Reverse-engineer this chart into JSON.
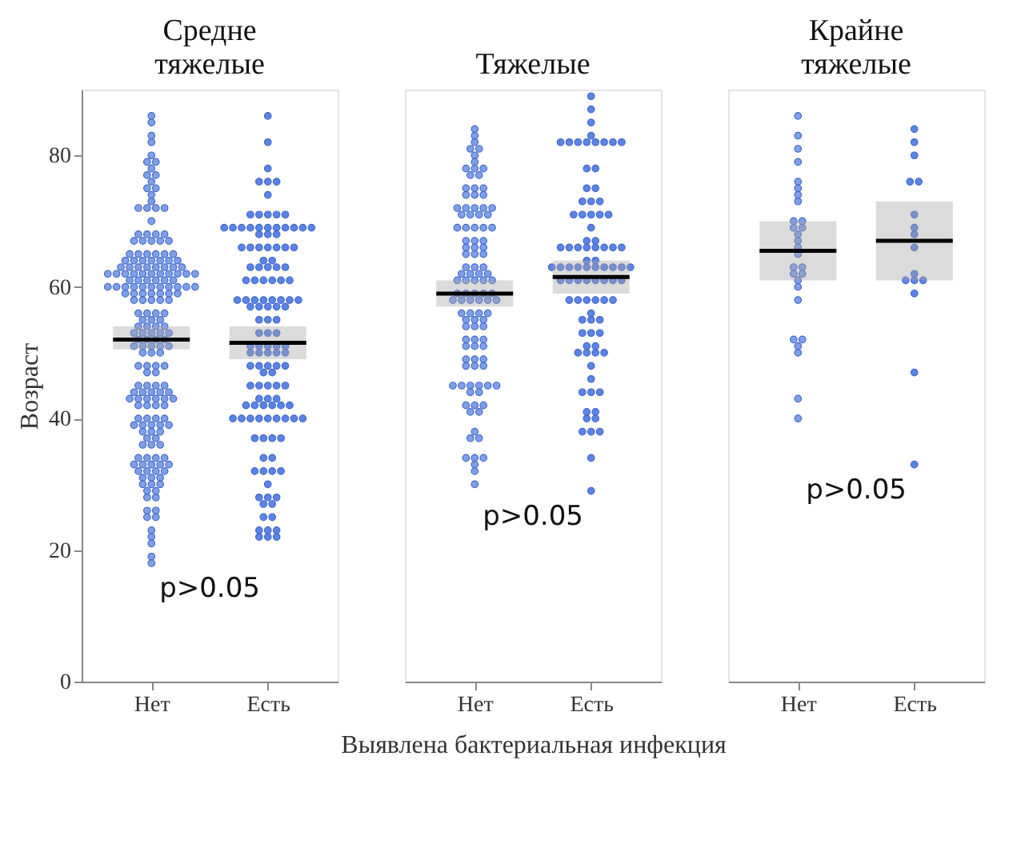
{
  "chart_data": [
    {
      "type": "scatter",
      "title": "Средне тяжелые",
      "ylabel": "Возраст",
      "categories": [
        "Нет",
        "Есть"
      ],
      "ylim": [
        0,
        90
      ],
      "yticks": [
        0,
        20,
        40,
        60,
        80
      ],
      "annotations": [
        "p>0.05"
      ],
      "series": [
        {
          "type": "scatter",
          "color": "#7fa0e8",
          "marker": "circle",
          "x": [
            "Нет",
            "Нет",
            "Нет",
            "Нет",
            "Нет",
            "Нет",
            "Нет",
            "Нет",
            "Нет",
            "Нет",
            "Нет",
            "Нет",
            "Нет",
            "Нет",
            "Нет",
            "Нет",
            "Нет",
            "Нет",
            "Нет",
            "Нет",
            "Нет",
            "Нет",
            "Нет",
            "Нет",
            "Нет",
            "Нет",
            "Нет",
            "Нет",
            "Нет",
            "Нет",
            "Нет",
            "Нет",
            "Нет",
            "Нет",
            "Нет",
            "Нет",
            "Нет",
            "Нет",
            "Нет",
            "Нет",
            "Нет",
            "Нет",
            "Нет",
            "Нет",
            "Нет",
            "Нет",
            "Нет",
            "Нет",
            "Нет",
            "Нет",
            "Нет",
            "Нет",
            "Нет",
            "Нет",
            "Нет",
            "Нет",
            "Нет",
            "Нет",
            "Нет",
            "Нет",
            "Нет",
            "Нет",
            "Нет",
            "Нет",
            "Нет",
            "Нет",
            "Нет",
            "Нет",
            "Нет",
            "Нет",
            "Нет",
            "Нет",
            "Нет",
            "Нет",
            "Нет",
            "Нет",
            "Нет",
            "Нет",
            "Нет",
            "Нет",
            "Нет",
            "Нет",
            "Нет",
            "Нет",
            "Нет",
            "Нет",
            "Нет",
            "Нет",
            "Нет",
            "Нет",
            "Нет",
            "Нет",
            "Нет",
            "Нет",
            "Нет",
            "Нет",
            "Нет",
            "Нет",
            "Нет",
            "Нет",
            "Нет",
            "Нет",
            "Нет",
            "Нет",
            "Нет",
            "Нет",
            "Нет",
            "Нет",
            "Нет",
            "Нет",
            "Нет",
            "Нет",
            "Нет",
            "Нет",
            "Нет",
            "Нет",
            "Нет",
            "Нет",
            "Нет",
            "Нет",
            "Нет",
            "Нет",
            "Нет",
            "Нет",
            "Нет",
            "Нет",
            "Нет",
            "Нет",
            "Нет",
            "Нет",
            "Нет",
            "Нет",
            "Нет",
            "Нет",
            "Нет",
            "Нет",
            "Нет",
            "Нет",
            "Нет",
            "Нет",
            "Нет",
            "Нет",
            "Нет",
            "Нет",
            "Нет",
            "Нет",
            "Нет",
            "Нет",
            "Нет",
            "Нет",
            "Нет",
            "Нет",
            "Нет",
            "Нет",
            "Нет",
            "Нет",
            "Нет",
            "Нет",
            "Нет",
            "Нет",
            "Нет",
            "Нет",
            "Нет",
            "Нет",
            "Нет",
            "Нет",
            "Нет",
            "Нет",
            "Нет",
            "Нет",
            "Нет",
            "Нет",
            "Нет",
            "Нет",
            "Нет",
            "Нет",
            "Нет",
            "Нет",
            "Нет",
            "Нет",
            "Нет",
            "Нет",
            "Нет",
            "Нет",
            "Нет",
            "Нет",
            "Нет",
            "Нет",
            "Нет",
            "Нет",
            "Нет",
            "Нет"
          ],
          "values": [
            86,
            85,
            83,
            82,
            80,
            79,
            79,
            78,
            77,
            77,
            76,
            75,
            75,
            74,
            73,
            72,
            72,
            72,
            72,
            70,
            68,
            68,
            68,
            68,
            67,
            67,
            67,
            67,
            67,
            65,
            65,
            65,
            65,
            65,
            65,
            64,
            64,
            64,
            64,
            64,
            64,
            64,
            63,
            63,
            63,
            63,
            63,
            63,
            63,
            63,
            62,
            62,
            62,
            62,
            62,
            62,
            62,
            62,
            62,
            62,
            62,
            61,
            61,
            61,
            61,
            61,
            61,
            60,
            60,
            60,
            60,
            60,
            60,
            60,
            60,
            60,
            60,
            60,
            59,
            59,
            59,
            59,
            59,
            59,
            59,
            58,
            58,
            58,
            58,
            58,
            56,
            56,
            56,
            56,
            55,
            55,
            55,
            54,
            54,
            54,
            54,
            53,
            53,
            53,
            53,
            53,
            52,
            52,
            52,
            52,
            51,
            51,
            51,
            51,
            51,
            50,
            50,
            50,
            48,
            48,
            48,
            48,
            47,
            47,
            45,
            45,
            45,
            45,
            44,
            44,
            44,
            44,
            44,
            43,
            43,
            43,
            43,
            43,
            43,
            42,
            42,
            42,
            42,
            40,
            40,
            40,
            40,
            39,
            39,
            39,
            39,
            39,
            38,
            38,
            38,
            37,
            37,
            36,
            36,
            36,
            34,
            34,
            34,
            34,
            33,
            33,
            33,
            33,
            33,
            32,
            32,
            32,
            32,
            31,
            31,
            31,
            30,
            30,
            30,
            29,
            29,
            28,
            28,
            26,
            26,
            25,
            25,
            23,
            22,
            21,
            19,
            18
          ]
        },
        {
          "type": "scatter",
          "color": "#5b84e6",
          "marker": "circle",
          "x": [
            "Есть",
            "Есть",
            "Есть",
            "Есть",
            "Есть",
            "Есть",
            "Есть",
            "Есть",
            "Есть",
            "Есть",
            "Есть",
            "Есть",
            "Есть",
            "Есть",
            "Есть",
            "Есть",
            "Есть",
            "Есть",
            "Есть",
            "Есть",
            "Есть",
            "Есть",
            "Есть",
            "Есть",
            "Есть",
            "Есть",
            "Есть",
            "Есть",
            "Есть",
            "Есть",
            "Есть",
            "Есть",
            "Есть",
            "Есть",
            "Есть",
            "Есть",
            "Есть",
            "Есть",
            "Есть",
            "Есть",
            "Есть",
            "Есть",
            "Есть",
            "Есть",
            "Есть",
            "Есть",
            "Есть",
            "Есть",
            "Есть",
            "Есть",
            "Есть",
            "Есть",
            "Есть",
            "Есть",
            "Есть",
            "Есть",
            "Есть",
            "Есть",
            "Есть",
            "Есть",
            "Есть",
            "Есть",
            "Есть",
            "Есть",
            "Есть",
            "Есть",
            "Есть",
            "Есть",
            "Есть",
            "Есть",
            "Есть",
            "Есть",
            "Есть",
            "Есть",
            "Есть",
            "Есть",
            "Есть",
            "Есть",
            "Есть",
            "Есть",
            "Есть",
            "Есть",
            "Есть",
            "Есть",
            "Есть",
            "Есть",
            "Есть",
            "Есть",
            "Есть",
            "Есть",
            "Есть",
            "Есть",
            "Есть",
            "Есть",
            "Есть",
            "Есть",
            "Есть",
            "Есть",
            "Есть",
            "Есть",
            "Есть",
            "Есть",
            "Есть",
            "Есть",
            "Есть",
            "Есть",
            "Есть",
            "Есть",
            "Есть",
            "Есть",
            "Есть",
            "Есть",
            "Есть",
            "Есть",
            "Есть",
            "Есть",
            "Есть",
            "Есть",
            "Есть",
            "Есть",
            "Есть",
            "Есть",
            "Есть",
            "Есть",
            "Есть",
            "Есть",
            "Есть",
            "Есть",
            "Есть"
          ],
          "values": [
            86,
            82,
            78,
            76,
            76,
            76,
            74,
            71,
            71,
            71,
            71,
            71,
            69,
            69,
            69,
            69,
            69,
            69,
            69,
            69,
            69,
            69,
            69,
            68,
            68,
            68,
            66,
            66,
            66,
            66,
            66,
            66,
            66,
            64,
            64,
            63,
            63,
            63,
            63,
            63,
            61,
            61,
            61,
            61,
            61,
            61,
            58,
            58,
            58,
            58,
            58,
            58,
            58,
            58,
            57,
            57,
            57,
            57,
            57,
            55,
            55,
            55,
            53,
            53,
            53,
            51,
            51,
            51,
            51,
            51,
            50,
            50,
            50,
            50,
            50,
            48,
            48,
            48,
            48,
            48,
            47,
            47,
            45,
            45,
            45,
            45,
            45,
            43,
            43,
            43,
            42,
            42,
            42,
            42,
            42,
            42,
            40,
            40,
            40,
            40,
            40,
            40,
            40,
            40,
            40,
            37,
            37,
            37,
            37,
            34,
            34,
            32,
            32,
            32,
            32,
            30,
            28,
            28,
            28,
            27,
            27,
            25,
            25,
            23,
            23,
            23,
            22,
            22,
            22
          ]
        },
        {
          "type": "box",
          "color": "#a6a6a6",
          "boxes": [
            {
              "low": 50.5,
              "q1": 50.5,
              "median": 52,
              "q3": 54,
              "high": 54
            },
            {
              "low": 49,
              "q1": 49,
              "median": 51.5,
              "q3": 54,
              "high": 54
            }
          ]
        }
      ]
    },
    {
      "type": "scatter",
      "title": "Тяжелые",
      "xlabel": "Выявлена бактериальная инфекция",
      "categories": [
        "Нет",
        "Есть"
      ],
      "ylim": [
        0,
        90
      ],
      "yticks": [
        0,
        20,
        40,
        60,
        80
      ],
      "tick_labels": "x",
      "annotations": [
        "p>0.05"
      ],
      "series": [
        {
          "type": "scatter",
          "color": "#7fa0e8",
          "marker": "circle",
          "x": [
            "Нет",
            "Нет",
            "Нет",
            "Нет",
            "Нет",
            "Нет",
            "Нет",
            "Нет",
            "Нет",
            "Нет",
            "Нет",
            "Нет",
            "Нет",
            "Нет",
            "Нет",
            "Нет",
            "Нет",
            "Нет",
            "Нет",
            "Нет",
            "Нет",
            "Нет",
            "Нет",
            "Нет",
            "Нет",
            "Нет",
            "Нет",
            "Нет",
            "Нет",
            "Нет",
            "Нет",
            "Нет",
            "Нет",
            "Нет",
            "Нет",
            "Нет",
            "Нет",
            "Нет",
            "Нет",
            "Нет",
            "Нет",
            "Нет",
            "Нет",
            "Нет",
            "Нет",
            "Нет",
            "Нет",
            "Нет",
            "Нет",
            "Нет",
            "Нет",
            "Нет",
            "Нет",
            "Нет",
            "Нет",
            "Нет",
            "Нет",
            "Нет",
            "Нет",
            "Нет",
            "Нет",
            "Нет",
            "Нет",
            "Нет",
            "Нет",
            "Нет",
            "Нет",
            "Нет",
            "Нет",
            "Нет",
            "Нет",
            "Нет",
            "Нет",
            "Нет",
            "Нет",
            "Нет",
            "Нет",
            "Нет",
            "Нет",
            "Нет",
            "Нет",
            "Нет",
            "Нет",
            "Нет",
            "Нет",
            "Нет",
            "Нет",
            "Нет",
            "Нет",
            "Нет",
            "Нет",
            "Нет",
            "Нет",
            "Нет",
            "Нет",
            "Нет",
            "Нет",
            "Нет",
            "Нет",
            "Нет",
            "Нет",
            "Нет",
            "Нет",
            "Нет",
            "Нет",
            "Нет",
            "Нет",
            "Нет"
          ],
          "values": [
            84,
            83,
            82,
            81,
            81,
            80,
            79,
            78,
            78,
            78,
            77,
            77,
            75,
            75,
            75,
            74,
            74,
            74,
            72,
            72,
            72,
            72,
            72,
            71,
            71,
            71,
            71,
            69,
            69,
            69,
            69,
            69,
            67,
            67,
            67,
            66,
            66,
            66,
            65,
            65,
            65,
            63,
            63,
            63,
            62,
            62,
            62,
            62,
            61,
            61,
            61,
            61,
            61,
            59,
            59,
            59,
            59,
            59,
            58,
            58,
            58,
            58,
            58,
            58,
            56,
            56,
            56,
            56,
            55,
            55,
            55,
            54,
            54,
            54,
            52,
            52,
            52,
            51,
            51,
            51,
            49,
            49,
            49,
            48,
            48,
            48,
            45,
            45,
            45,
            45,
            45,
            45,
            44,
            44,
            42,
            42,
            42,
            41,
            41,
            38,
            37,
            37,
            34,
            34,
            34,
            33,
            32,
            30
          ]
        },
        {
          "type": "scatter",
          "color": "#5b84e6",
          "marker": "circle",
          "x": [
            "Есть",
            "Есть",
            "Есть",
            "Есть",
            "Есть",
            "Есть",
            "Есть",
            "Есть",
            "Есть",
            "Есть",
            "Есть",
            "Есть",
            "Есть",
            "Есть",
            "Есть",
            "Есть",
            "Есть",
            "Есть",
            "Есть",
            "Есть",
            "Есть",
            "Есть",
            "Есть",
            "Есть",
            "Есть",
            "Есть",
            "Есть",
            "Есть",
            "Есть",
            "Есть",
            "Есть",
            "Есть",
            "Есть",
            "Есть",
            "Есть",
            "Есть",
            "Есть",
            "Есть",
            "Есть",
            "Есть",
            "Есть",
            "Есть",
            "Есть",
            "Есть",
            "Есть",
            "Есть",
            "Есть",
            "Есть",
            "Есть",
            "Есть",
            "Есть",
            "Есть",
            "Есть",
            "Есть",
            "Есть",
            "Есть",
            "Есть",
            "Есть",
            "Есть",
            "Есть",
            "Есть",
            "Есть",
            "Есть",
            "Есть",
            "Есть",
            "Есть",
            "Есть",
            "Есть",
            "Есть",
            "Есть",
            "Есть",
            "Есть",
            "Есть",
            "Есть",
            "Есть",
            "Есть",
            "Есть",
            "Есть",
            "Есть",
            "Есть",
            "Есть",
            "Есть",
            "Есть",
            "Есть",
            "Есть",
            "Есть",
            "Есть",
            "Есть"
          ],
          "values": [
            89,
            87,
            85,
            83,
            82,
            82,
            82,
            82,
            82,
            82,
            82,
            82,
            78,
            78,
            75,
            75,
            73,
            73,
            73,
            71,
            71,
            71,
            71,
            71,
            69,
            67,
            67,
            66,
            66,
            66,
            66,
            66,
            66,
            66,
            66,
            64,
            64,
            63,
            63,
            63,
            63,
            63,
            63,
            63,
            63,
            63,
            63,
            61,
            61,
            61,
            61,
            61,
            61,
            61,
            61,
            58,
            58,
            58,
            58,
            58,
            58,
            56,
            55,
            55,
            55,
            53,
            53,
            53,
            51,
            51,
            50,
            50,
            50,
            50,
            48,
            46,
            44,
            44,
            44,
            41,
            41,
            40,
            40,
            38,
            38,
            38,
            34,
            29
          ]
        },
        {
          "type": "box",
          "color": "#a6a6a6",
          "boxes": [
            {
              "low": 57,
              "q1": 57,
              "median": 59,
              "q3": 61,
              "high": 61
            },
            {
              "low": 59,
              "q1": 59,
              "median": 61.5,
              "q3": 64,
              "high": 64
            }
          ]
        }
      ]
    },
    {
      "type": "scatter",
      "title": "Крайне тяжелые",
      "categories": [
        "Нет",
        "Есть"
      ],
      "ylim": [
        0,
        90
      ],
      "yticks": [
        0,
        20,
        40,
        60,
        80
      ],
      "tick_labels": "x",
      "annotations": [
        "p>0.05"
      ],
      "series": [
        {
          "type": "scatter",
          "color": "#7fa0e8",
          "marker": "circle",
          "x": [
            "Нет",
            "Нет",
            "Нет",
            "Нет",
            "Нет",
            "Нет",
            "Нет",
            "Нет",
            "Нет",
            "Нет",
            "Нет",
            "Нет",
            "Нет",
            "Нет",
            "Нет",
            "Нет",
            "Нет",
            "Нет",
            "Нет",
            "Нет",
            "Нет",
            "Нет",
            "Нет",
            "Нет",
            "Нет",
            "Нет",
            "Нет",
            "Нет",
            "Нет"
          ],
          "values": [
            86,
            83,
            81,
            79,
            76,
            75,
            74,
            73,
            70,
            70,
            69,
            69,
            68,
            67,
            66,
            65,
            63,
            63,
            62,
            62,
            61,
            60,
            58,
            52,
            52,
            51,
            50,
            43,
            40
          ]
        },
        {
          "type": "scatter",
          "color": "#5b84e6",
          "marker": "circle",
          "x": [
            "Есть",
            "Есть",
            "Есть",
            "Есть",
            "Есть",
            "Есть",
            "Есть",
            "Есть",
            "Есть",
            "Есть",
            "Есть",
            "Есть",
            "Есть",
            "Есть",
            "Есть",
            "Есть"
          ],
          "values": [
            84,
            82,
            80,
            76,
            76,
            71,
            69,
            68,
            66,
            62,
            61,
            61,
            61,
            59,
            47,
            33
          ]
        },
        {
          "type": "box",
          "color": "#a6a6a6",
          "boxes": [
            {
              "low": 61,
              "q1": 61,
              "median": 65.5,
              "q3": 70,
              "high": 70
            },
            {
              "low": 61,
              "q1": 61,
              "median": 67,
              "q3": 73,
              "high": 73
            }
          ]
        }
      ]
    }
  ]
}
